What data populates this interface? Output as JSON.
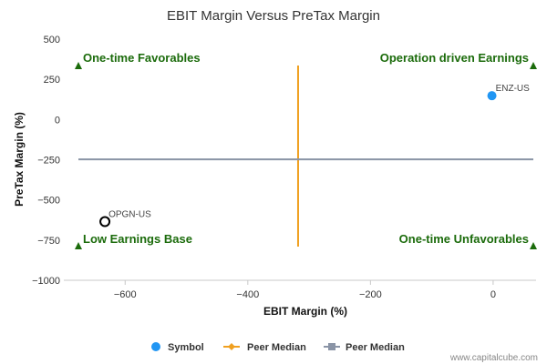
{
  "chart_data": {
    "type": "scatter",
    "title": "EBIT Margin Versus PreTax Margin",
    "xlabel": "EBIT Margin (%)",
    "ylabel": "PreTax Margin (%)",
    "xlim": [
      -700,
      70
    ],
    "ylim": [
      -1000,
      500
    ],
    "xticks": [
      -600,
      -400,
      -200,
      0
    ],
    "yticks": [
      500,
      250,
      0,
      -250,
      -500,
      -750,
      -1000
    ],
    "xtick_labels": [
      "−600",
      "−400",
      "−200",
      "0"
    ],
    "ytick_labels": [
      "500",
      "250",
      "0",
      "−250",
      "−500",
      "−750",
      "−1000"
    ],
    "grid": false,
    "points": [
      {
        "label": "ENZ-US",
        "x": -2,
        "y": 148,
        "style": "filled",
        "color": "#2196f3"
      },
      {
        "label": "OPGN-US",
        "x": -633,
        "y": -635,
        "style": "hollow",
        "color": "#000000"
      }
    ],
    "peer_median_x": -318,
    "peer_median_y": -248,
    "peer_median_x_color": "#f0a020",
    "peer_median_y_color": "#8a94a6",
    "quadrant_labels": {
      "top_left": "One-time Favorables",
      "top_right": "Operation driven Earnings",
      "bottom_left": "Low Earnings Base",
      "bottom_right": "One-time Unfavorables"
    },
    "quadrant_marker_color": "#1b6b0b",
    "legend": {
      "placement": "bottom-center",
      "items": [
        {
          "label": "Symbol",
          "kind": "circle",
          "color": "#2196f3"
        },
        {
          "label": "Peer Median",
          "kind": "line-diamond",
          "color": "#f0a020"
        },
        {
          "label": "Peer Median",
          "kind": "line-square",
          "color": "#8a94a6"
        }
      ]
    }
  },
  "footer": {
    "credit": "www.capitalcube.com"
  }
}
